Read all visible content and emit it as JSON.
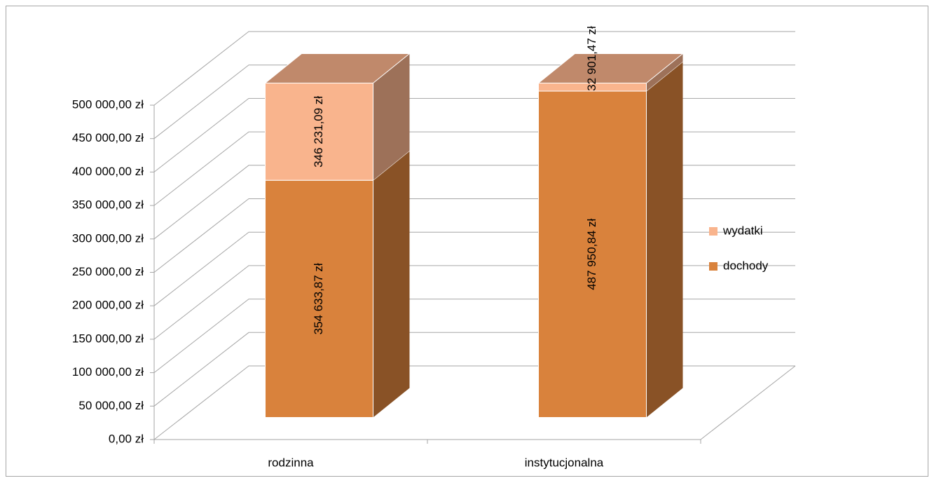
{
  "chart_data": {
    "type": "bar3d_stacked",
    "categories": [
      "rodzinna",
      "instytucjonalna"
    ],
    "series": [
      {
        "name": "dochody",
        "color": "#d9823c",
        "values": [
          354633.87,
          487950.84
        ],
        "value_labels": [
          "354 633,87 zł",
          "487 950,84 zł"
        ]
      },
      {
        "name": "wydatki",
        "color": "#f9b48d",
        "values": [
          346231.09,
          32901.47
        ],
        "value_labels": [
          "346 231,09 zł",
          "32 901,47 zł"
        ]
      }
    ],
    "ylim": [
      0,
      500000
    ],
    "yticks": [
      {
        "value": 0,
        "label": "0,00 zł"
      },
      {
        "value": 50000,
        "label": "50 000,00 zł"
      },
      {
        "value": 100000,
        "label": "100 000,00 zł"
      },
      {
        "value": 150000,
        "label": "150 000,00 zł"
      },
      {
        "value": 200000,
        "label": "200 000,00 zł"
      },
      {
        "value": 250000,
        "label": "250 000,00 zł"
      },
      {
        "value": 300000,
        "label": "300 000,00 zł"
      },
      {
        "value": 350000,
        "label": "350 000,00 zł"
      },
      {
        "value": 400000,
        "label": "400 000,00 zł"
      },
      {
        "value": 450000,
        "label": "450 000,00 zł"
      },
      {
        "value": 500000,
        "label": "500 000,00 zł"
      }
    ],
    "grid": true,
    "legend": "right"
  }
}
